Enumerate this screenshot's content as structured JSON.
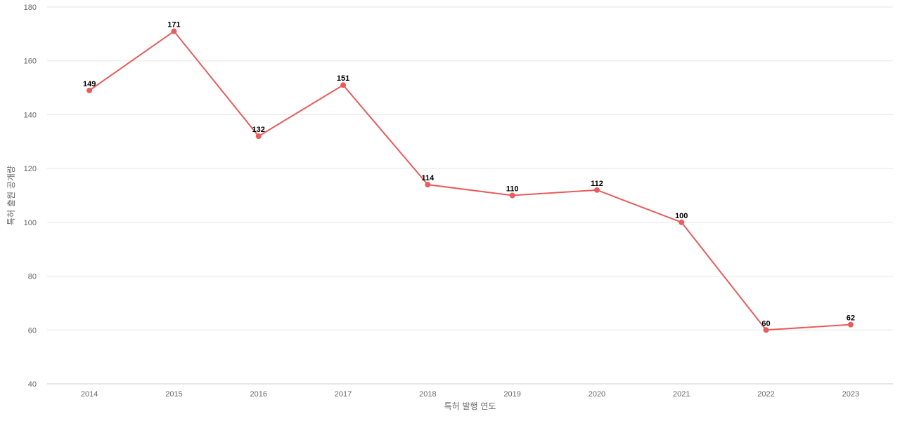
{
  "chart_data": {
    "type": "line",
    "title": "",
    "xlabel": "특허 발행 연도",
    "ylabel": "특허 출원 공개량",
    "categories": [
      "2014",
      "2015",
      "2016",
      "2017",
      "2018",
      "2019",
      "2020",
      "2021",
      "2022",
      "2023"
    ],
    "series": [
      {
        "values": [
          149,
          171,
          132,
          151,
          114,
          110,
          112,
          100,
          60,
          62
        ],
        "color": "#e85c5c"
      }
    ],
    "ylim": [
      40,
      180
    ],
    "yticks": [
      40,
      60,
      80,
      100,
      120,
      140,
      160,
      180
    ],
    "grid": true,
    "legend": "none"
  }
}
